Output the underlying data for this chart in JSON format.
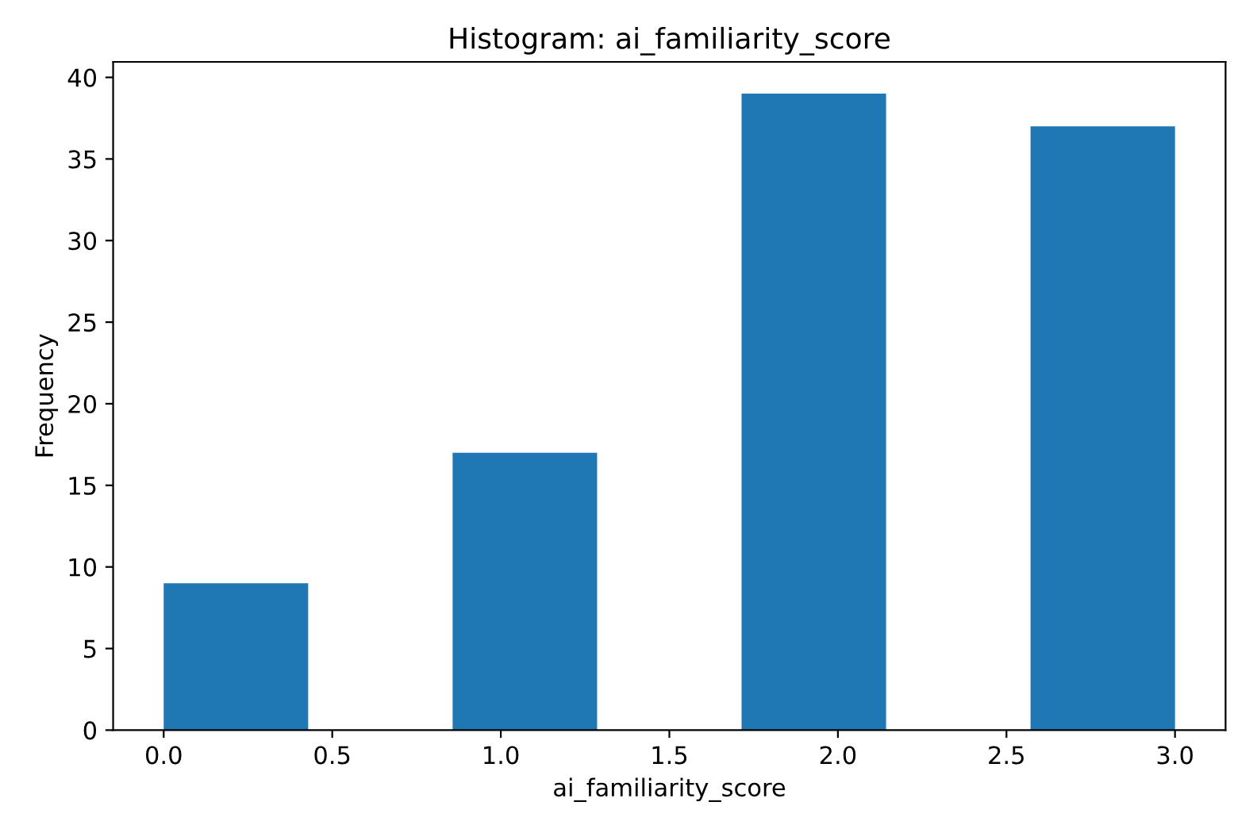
{
  "chart_data": {
    "type": "histogram",
    "title": "Histogram: ai_familiarity_score",
    "xlabel": "ai_familiarity_score",
    "ylabel": "Frequency",
    "bins": [
      0,
      0.4286,
      0.8571,
      1.2857,
      1.7143,
      2.1429,
      2.5714,
      3.0
    ],
    "values": [
      9,
      0,
      17,
      0,
      39,
      0,
      37
    ],
    "color": "#1f77b4",
    "xlim": [
      -0.15,
      3.15
    ],
    "xticks": [
      {
        "value": 0,
        "label": "0.0"
      },
      {
        "value": 0.5,
        "label": "0.5"
      },
      {
        "value": 1,
        "label": "1.0"
      },
      {
        "value": 1.5,
        "label": "1.5"
      },
      {
        "value": 2,
        "label": "2.0"
      },
      {
        "value": 2.5,
        "label": "2.5"
      },
      {
        "value": 3,
        "label": "3.0"
      }
    ],
    "ylim": [
      0,
      40.95
    ],
    "yticks": [
      0,
      5,
      10,
      15,
      20,
      25,
      30,
      35,
      40
    ],
    "grid": false
  }
}
